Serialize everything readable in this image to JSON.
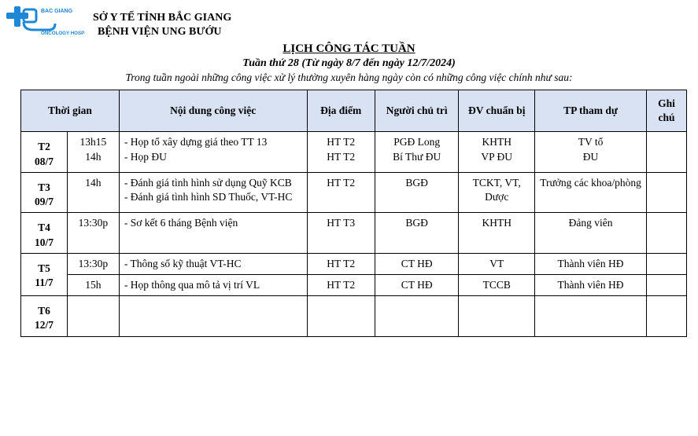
{
  "logo": {
    "brand_top": "BAC GIANG",
    "brand_bottom": "ONCOLOGY HOSP",
    "primary": "#1e87d6",
    "accent": "#0b5aa6"
  },
  "header": {
    "line1": "SỞ Y TẾ TỈNH BẮC GIANG",
    "line2": "BỆNH VIỆN UNG BƯỚU"
  },
  "title": {
    "main": "LỊCH CÔNG TÁC TUẦN",
    "sub1": "Tuần thứ 28 (Từ ngày 8/7 đến ngày 12/7/2024)",
    "sub2": "Trong tuần ngoài những công việc xử lý thường xuyên hàng ngày còn có những công việc chính như sau:"
  },
  "table": {
    "header_bg": "#d9e2f3",
    "headers": {
      "time": "Thời gian",
      "task": "Nội dung công việc",
      "loc": "Địa điểm",
      "chair": "Người chủ trì",
      "prep": "ĐV chuẩn bị",
      "att": "TP tham dự",
      "note": "Ghi chú"
    },
    "rows": [
      {
        "day": "T2\n08/7",
        "time": "13h15\n14h",
        "task": "- Họp tổ xây dựng giá theo TT 13\n- Họp ĐU",
        "loc": "HT T2\nHT T2",
        "chair": "PGĐ Long\nBí Thư ĐU",
        "prep": "KHTH\nVP ĐU",
        "att": "TV tổ\nĐU",
        "note": ""
      },
      {
        "day": "T3\n09/7",
        "time": "14h",
        "task": "- Đánh giá tình hình sử dụng Quỹ KCB\n- Đánh giá tình hình SD Thuốc, VT-HC",
        "loc": "HT T2",
        "chair": "BGĐ",
        "prep": "TCKT, VT, Dược",
        "att": "Trưởng các khoa/phòng",
        "note": ""
      },
      {
        "day": "T4\n10/7",
        "time": "13:30p",
        "task": "- Sơ kết 6 tháng Bệnh viện",
        "loc": "HT T3",
        "chair": "BGĐ",
        "prep": "KHTH",
        "att": "Đảng viên",
        "note": ""
      },
      {
        "day": "T5\n11/7",
        "slots": [
          {
            "time": "13:30p",
            "task": "- Thông số kỹ thuật VT-HC",
            "loc": "HT T2",
            "chair": "CT HĐ",
            "prep": "VT",
            "att": "Thành viên HĐ",
            "note": ""
          },
          {
            "time": "15h",
            "task": "- Họp thông qua mô tả vị trí VL",
            "loc": "HT T2",
            "chair": "CT HĐ",
            "prep": "TCCB",
            "att": "Thành viên HĐ",
            "note": ""
          }
        ]
      },
      {
        "day": "T6\n12/7",
        "time": "",
        "task": "",
        "loc": "",
        "chair": "",
        "prep": "",
        "att": "",
        "note": ""
      }
    ]
  }
}
